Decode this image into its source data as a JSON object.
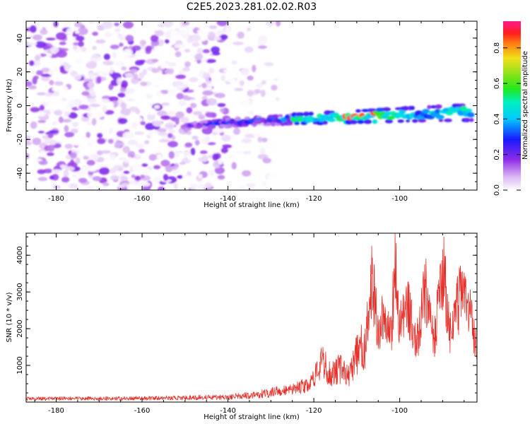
{
  "figure": {
    "title": "C2E5.2023.281.02.02.R03"
  },
  "chart_data": [
    {
      "type": "heatmap",
      "xlabel": "Height of straight line (km)",
      "ylabel": "Frequency (Hz)",
      "xlim": [
        -187,
        -82
      ],
      "ylim": [
        -50,
        50
      ],
      "xticks": [
        -180,
        -160,
        -140,
        -120,
        -100
      ],
      "yticks": [
        -40,
        -20,
        0,
        20,
        40
      ],
      "colorbar": {
        "label": "Normalized spectral amplitude",
        "range": [
          0.0,
          0.95
        ],
        "ticks": [
          "0.0",
          "0.2",
          "0.4",
          "0.6",
          "0.8"
        ],
        "colormap": "rainbow (white-purple-blue-cyan-green-yellow-red-magenta)"
      },
      "features": [
        {
          "description": "scattered low-amplitude noise",
          "x_range": [
            -187,
            -128
          ],
          "y_range": [
            -50,
            50
          ],
          "amplitude": [
            0.0,
            0.2
          ]
        },
        {
          "description": "narrow band signal",
          "x_range": [
            -150,
            -83
          ],
          "frequency_start": -13,
          "frequency_end": -4,
          "amplitude_peak": 0.85,
          "peak_x": [
            -113,
            -105
          ]
        }
      ]
    },
    {
      "type": "line",
      "xlabel": "Height of straight line (km)",
      "ylabel": "SNR (10 * v/v)",
      "xlim": [
        -187,
        -82
      ],
      "ylim": [
        0,
        4600
      ],
      "xticks": [
        -180,
        -160,
        -140,
        -120,
        -100
      ],
      "yticks": [
        1000,
        2000,
        3000,
        4000
      ],
      "line_color": "#e8302a",
      "series": [
        {
          "x": [
            -187,
            -180,
            -170,
            -160,
            -150,
            -140,
            -135,
            -130,
            -125,
            -122,
            -120,
            -118,
            -116,
            -114,
            -112,
            -110,
            -108,
            -106.5,
            -105,
            -104,
            -103,
            -102,
            -101,
            -100,
            -98,
            -96,
            -94,
            -92,
            -90,
            -88,
            -86,
            -84,
            -82
          ],
          "y": [
            120,
            130,
            130,
            140,
            160,
            180,
            250,
            330,
            420,
            550,
            800,
            1300,
            900,
            1100,
            850,
            1600,
            1900,
            4000,
            2400,
            2700,
            2500,
            2200,
            4550,
            2600,
            3100,
            2000,
            3700,
            2000,
            4500,
            2100,
            3500,
            3100,
            1900
          ]
        }
      ]
    }
  ]
}
